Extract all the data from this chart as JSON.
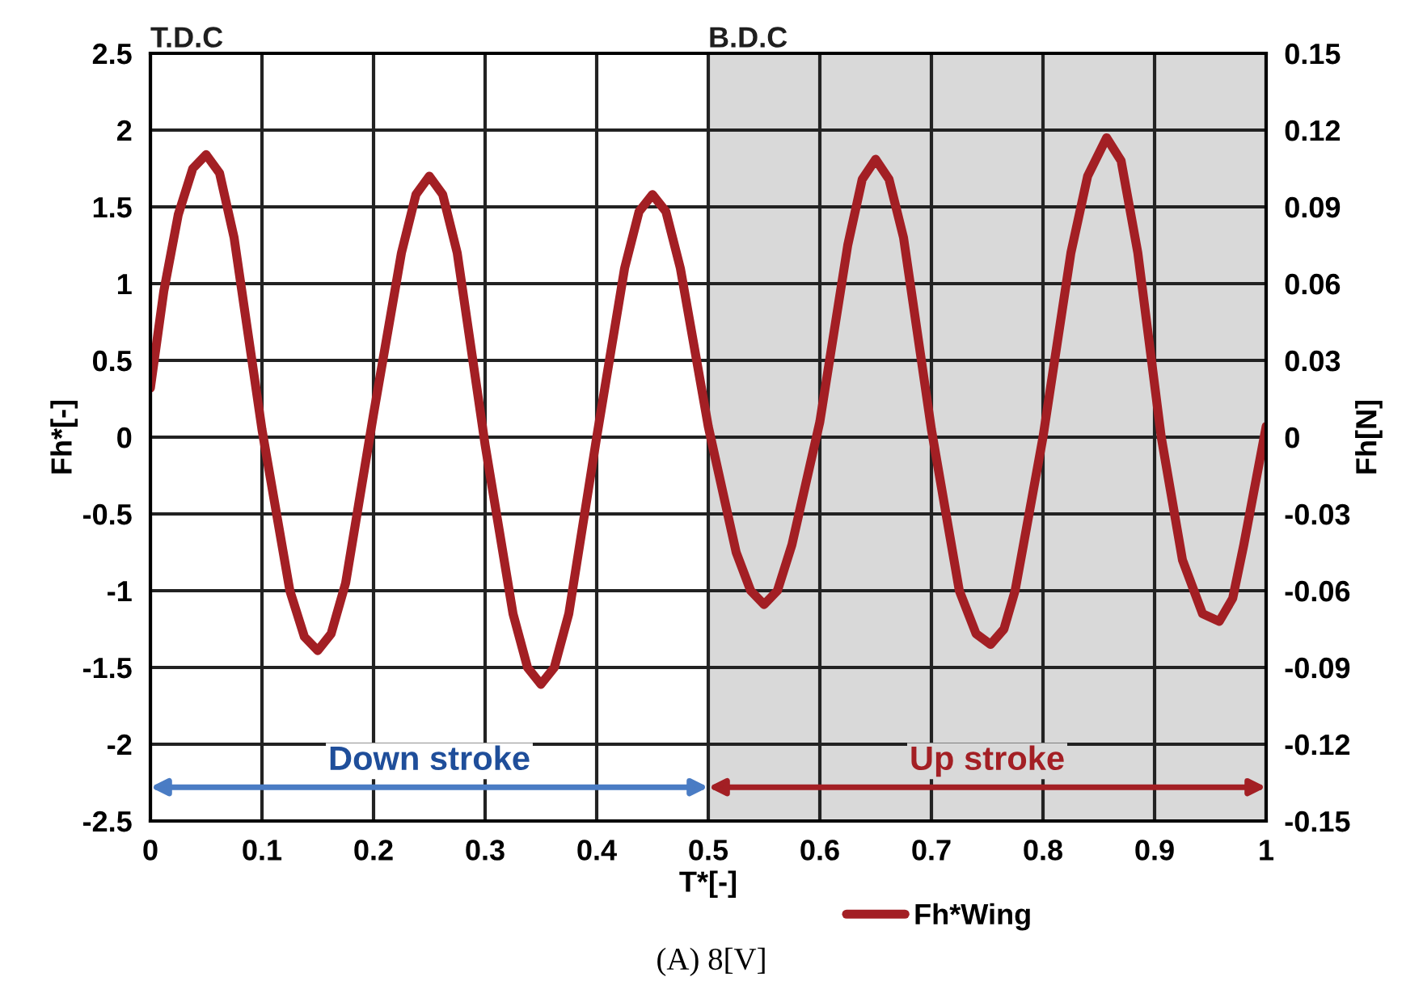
{
  "chart_data": {
    "type": "line",
    "xlabel": "T*[-]",
    "ylabel": "Fh*[-]",
    "y2label": "Fh[N]",
    "xlim": [
      0,
      1
    ],
    "xticks": [
      0,
      0.1,
      0.2,
      0.3,
      0.4,
      0.5,
      0.6,
      0.7,
      0.8,
      0.9,
      1
    ],
    "ylim": [
      -2.5,
      2.5
    ],
    "yticks": [
      -2.5,
      -2,
      -1.5,
      -1,
      -0.5,
      0,
      0.5,
      1,
      1.5,
      2,
      2.5
    ],
    "y2lim": [
      -0.15,
      0.15
    ],
    "y2ticks": [
      -0.15,
      -0.12,
      -0.09,
      -0.06,
      -0.03,
      0,
      0.03,
      0.06,
      0.09,
      0.12,
      0.15
    ],
    "grid": true,
    "legend": "bottom",
    "marker": "none",
    "line_style": "solid",
    "bands": [
      {
        "axis": "x",
        "from": 0.5,
        "to": 1,
        "color": "#d9d9d9"
      }
    ],
    "annotations": [
      "T.D.C",
      "B.D.C",
      "Down stroke",
      "Up stroke",
      "(A) 8[V]"
    ],
    "series": [
      {
        "name": "Fh*Wing",
        "color": "#a31f24",
        "x": [
          0,
          0.012,
          0.025,
          0.038,
          0.05,
          0.062,
          0.075,
          0.1,
          0.125,
          0.138,
          0.15,
          0.162,
          0.175,
          0.2,
          0.225,
          0.238,
          0.25,
          0.262,
          0.275,
          0.3,
          0.325,
          0.338,
          0.35,
          0.362,
          0.375,
          0.4,
          0.425,
          0.438,
          0.45,
          0.462,
          0.475,
          0.5,
          0.525,
          0.538,
          0.55,
          0.562,
          0.575,
          0.6,
          0.625,
          0.638,
          0.65,
          0.662,
          0.675,
          0.7,
          0.725,
          0.74,
          0.753,
          0.765,
          0.775,
          0.8,
          0.825,
          0.84,
          0.857,
          0.87,
          0.885,
          0.906,
          0.925,
          0.943,
          0.958,
          0.97,
          0.98,
          1
        ],
        "values": [
          0.32,
          0.95,
          1.45,
          1.75,
          1.84,
          1.72,
          1.3,
          0.05,
          -1.0,
          -1.3,
          -1.39,
          -1.28,
          -0.95,
          0.15,
          1.2,
          1.58,
          1.7,
          1.58,
          1.2,
          -0.05,
          -1.15,
          -1.5,
          -1.61,
          -1.5,
          -1.15,
          0.0,
          1.1,
          1.47,
          1.58,
          1.47,
          1.1,
          0.07,
          -0.75,
          -1.0,
          -1.09,
          -1.0,
          -0.7,
          0.1,
          1.25,
          1.68,
          1.81,
          1.68,
          1.3,
          0.05,
          -1.0,
          -1.28,
          -1.35,
          -1.25,
          -1.0,
          0.0,
          1.2,
          1.7,
          1.95,
          1.8,
          1.2,
          0.0,
          -0.8,
          -1.15,
          -1.2,
          -1.05,
          -0.7,
          0.07
        ]
      }
    ]
  }
}
